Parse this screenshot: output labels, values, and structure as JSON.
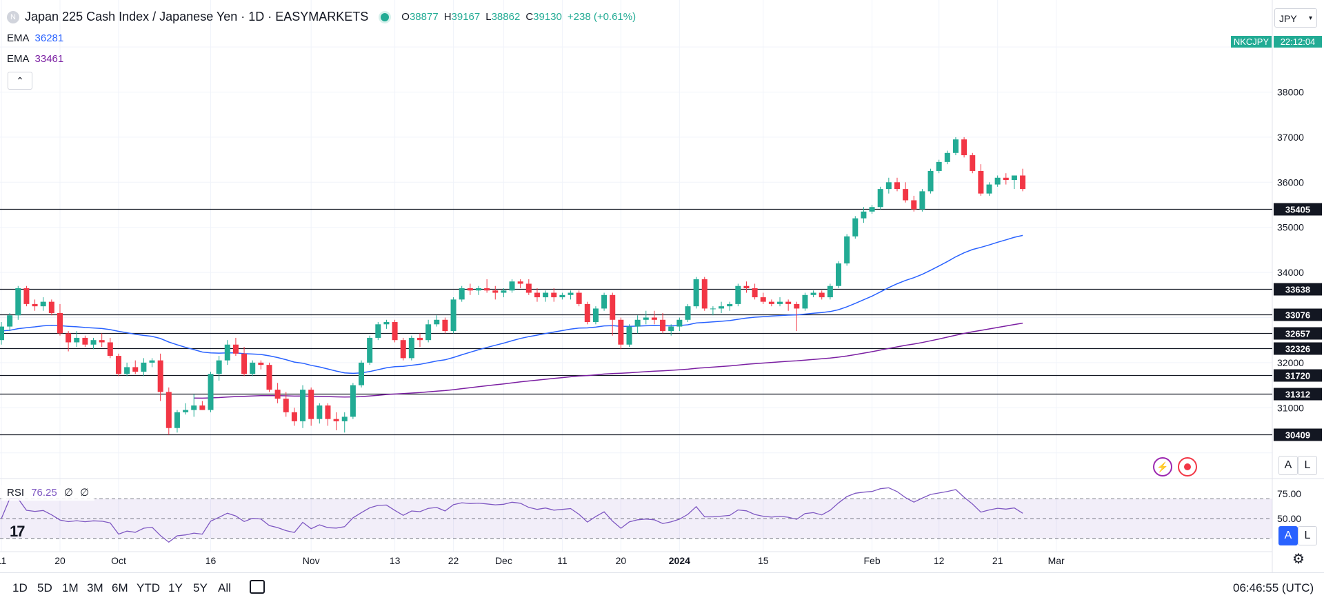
{
  "header": {
    "title": "Japan 225 Cash Index / Japanese Yen · 1D · EASYMARKETS",
    "ohlc": [
      {
        "label": "O",
        "value": "38877"
      },
      {
        "label": "H",
        "value": "39167"
      },
      {
        "label": "L",
        "value": "38862"
      },
      {
        "label": "C",
        "value": "39130"
      }
    ],
    "change": "+238 (+0.61%)"
  },
  "indicators": [
    {
      "name": "EMA",
      "value": "36281",
      "color": "#2962ff"
    },
    {
      "name": "EMA",
      "value": "33461",
      "color": "#7b1fa2"
    }
  ],
  "currency_button": "JPY",
  "symbol_tag": "NKCJPY",
  "countdown": "22:12:04",
  "rsi": {
    "label": "RSI",
    "value": "76.25",
    "extra1": "∅",
    "extra2": "∅"
  },
  "timeframes": [
    "1D",
    "5D",
    "1M",
    "3M",
    "6M",
    "YTD",
    "1Y",
    "5Y",
    "All"
  ],
  "clock": "06:46:55 (UTC)",
  "scale_buttons": {
    "a": "A",
    "l": "L"
  },
  "colors": {
    "up": "#22ab94",
    "down": "#f23645",
    "ema_fast": "#2962ff",
    "ema_slow": "#7b1fa2",
    "rsi": "#7e57c2",
    "price_tag": "#22ab94"
  },
  "chart_data": {
    "type": "candlestick",
    "title": "Japan 225 Cash Index / Japanese Yen · 1D · EASYMARKETS",
    "ylim": [
      29600,
      39600
    ],
    "y_ticks": [
      31000,
      32000,
      34000,
      35000,
      36000,
      37000,
      38000
    ],
    "x_labels": [
      {
        "label": "11",
        "index": 0
      },
      {
        "label": "20",
        "index": 7
      },
      {
        "label": "Oct",
        "index": 14
      },
      {
        "label": "16",
        "index": 25
      },
      {
        "label": "Nov",
        "index": 37
      },
      {
        "label": "13",
        "index": 47
      },
      {
        "label": "22",
        "index": 54
      },
      {
        "label": "Dec",
        "index": 60
      },
      {
        "label": "11",
        "index": 67
      },
      {
        "label": "20",
        "index": 74
      },
      {
        "label": "2024",
        "index": 81
      },
      {
        "label": "15",
        "index": 91
      },
      {
        "label": "Feb",
        "index": 104
      },
      {
        "label": "12",
        "index": 112
      },
      {
        "label": "21",
        "index": 119
      },
      {
        "label": "Mar",
        "index": 126
      }
    ],
    "levels": [
      35405,
      33638,
      33076,
      32657,
      32326,
      31720,
      31312,
      30409
    ],
    "candles": [
      [
        32500,
        32900,
        32400,
        32800
      ],
      [
        32800,
        33100,
        32700,
        33050
      ],
      [
        33050,
        33700,
        32950,
        33650
      ],
      [
        33650,
        33700,
        33250,
        33300
      ],
      [
        33300,
        33400,
        33150,
        33250
      ],
      [
        33250,
        33450,
        33150,
        33350
      ],
      [
        33350,
        33400,
        33050,
        33100
      ],
      [
        33100,
        33300,
        32600,
        32650
      ],
      [
        32650,
        32700,
        32250,
        32450
      ],
      [
        32450,
        32700,
        32350,
        32550
      ],
      [
        32550,
        32600,
        32350,
        32400
      ],
      [
        32400,
        32550,
        32300,
        32500
      ],
      [
        32500,
        32650,
        32350,
        32450
      ],
      [
        32450,
        32550,
        32100,
        32150
      ],
      [
        32150,
        32200,
        31700,
        31750
      ],
      [
        31750,
        32000,
        31700,
        31900
      ],
      [
        31900,
        32050,
        31750,
        31800
      ],
      [
        31800,
        32100,
        31700,
        32000
      ],
      [
        32000,
        32100,
        31900,
        32050
      ],
      [
        32050,
        32200,
        31150,
        31350
      ],
      [
        31350,
        31450,
        30400,
        30550
      ],
      [
        30550,
        30950,
        30450,
        30900
      ],
      [
        30900,
        31100,
        30850,
        30950
      ],
      [
        30950,
        31300,
        30800,
        31050
      ],
      [
        31050,
        31150,
        30950,
        30950
      ],
      [
        30950,
        31800,
        30900,
        31750
      ],
      [
        31750,
        32150,
        31600,
        32050
      ],
      [
        32050,
        32500,
        31950,
        32400
      ],
      [
        32400,
        32550,
        32150,
        32200
      ],
      [
        32200,
        32350,
        31700,
        31750
      ],
      [
        31750,
        32050,
        31700,
        32000
      ],
      [
        32000,
        32050,
        31850,
        31950
      ],
      [
        31950,
        32000,
        31350,
        31400
      ],
      [
        31400,
        31550,
        31100,
        31200
      ],
      [
        31200,
        31350,
        30800,
        30900
      ],
      [
        30900,
        31000,
        30600,
        30700
      ],
      [
        30700,
        31500,
        30550,
        31400
      ],
      [
        31400,
        31450,
        30600,
        30750
      ],
      [
        30750,
        31100,
        30650,
        31050
      ],
      [
        31050,
        31100,
        30600,
        30750
      ],
      [
        30750,
        30900,
        30500,
        30700
      ],
      [
        30700,
        30900,
        30450,
        30800
      ],
      [
        30800,
        31550,
        30750,
        31500
      ],
      [
        31500,
        32050,
        31450,
        32000
      ],
      [
        32000,
        32600,
        31950,
        32550
      ],
      [
        32550,
        32900,
        32500,
        32850
      ],
      [
        32850,
        32950,
        32750,
        32900
      ],
      [
        32900,
        32950,
        32450,
        32500
      ],
      [
        32500,
        32550,
        32050,
        32100
      ],
      [
        32100,
        32600,
        32050,
        32550
      ],
      [
        32550,
        32650,
        32350,
        32500
      ],
      [
        32500,
        32950,
        32450,
        32850
      ],
      [
        32850,
        33050,
        32800,
        32950
      ],
      [
        32950,
        33000,
        32650,
        32700
      ],
      [
        32700,
        33450,
        32650,
        33400
      ],
      [
        33400,
        33700,
        33350,
        33650
      ],
      [
        33650,
        33750,
        33500,
        33600
      ],
      [
        33600,
        33700,
        33500,
        33650
      ],
      [
        33650,
        33850,
        33550,
        33600
      ],
      [
        33600,
        33700,
        33400,
        33550
      ],
      [
        33550,
        33650,
        33450,
        33600
      ],
      [
        33600,
        33850,
        33550,
        33800
      ],
      [
        33800,
        33850,
        33650,
        33750
      ],
      [
        33750,
        33850,
        33500,
        33550
      ],
      [
        33550,
        33650,
        33350,
        33450
      ],
      [
        33450,
        33600,
        33350,
        33550
      ],
      [
        33550,
        33650,
        33350,
        33450
      ],
      [
        33450,
        33550,
        33400,
        33500
      ],
      [
        33500,
        33600,
        33400,
        33550
      ],
      [
        33550,
        33600,
        33250,
        33300
      ],
      [
        33300,
        33350,
        32850,
        32900
      ],
      [
        32900,
        33250,
        32850,
        33200
      ],
      [
        33200,
        33550,
        33150,
        33500
      ],
      [
        33500,
        33550,
        32600,
        32950
      ],
      [
        32950,
        33000,
        32300,
        32400
      ],
      [
        32400,
        32850,
        32350,
        32800
      ],
      [
        32800,
        33050,
        32650,
        32950
      ],
      [
        32950,
        33150,
        32850,
        33000
      ],
      [
        33000,
        33150,
        32850,
        32950
      ],
      [
        32950,
        33100,
        32650,
        32700
      ],
      [
        32700,
        32850,
        32600,
        32800
      ],
      [
        32800,
        33000,
        32700,
        32950
      ],
      [
        32950,
        33300,
        32900,
        33250
      ],
      [
        33250,
        33900,
        33200,
        33850
      ],
      [
        33850,
        33900,
        33150,
        33200
      ],
      [
        33200,
        33250,
        33050,
        33200
      ],
      [
        33200,
        33350,
        33100,
        33250
      ],
      [
        33250,
        33350,
        33150,
        33300
      ],
      [
        33300,
        33750,
        33250,
        33700
      ],
      [
        33700,
        33800,
        33550,
        33650
      ],
      [
        33650,
        33750,
        33400,
        33450
      ],
      [
        33450,
        33550,
        33300,
        33350
      ],
      [
        33350,
        33400,
        33250,
        33300
      ],
      [
        33300,
        33450,
        33250,
        33350
      ],
      [
        33350,
        33400,
        33150,
        33300
      ],
      [
        33300,
        33350,
        32700,
        33200
      ],
      [
        33200,
        33550,
        33150,
        33500
      ],
      [
        33500,
        33600,
        33450,
        33550
      ],
      [
        33550,
        33600,
        33400,
        33450
      ],
      [
        33450,
        33750,
        33400,
        33700
      ],
      [
        33700,
        34250,
        33650,
        34200
      ],
      [
        34200,
        34850,
        34150,
        34800
      ],
      [
        34800,
        35250,
        34750,
        35200
      ],
      [
        35200,
        35450,
        35100,
        35350
      ],
      [
        35350,
        35500,
        35300,
        35450
      ],
      [
        35450,
        35900,
        35400,
        35850
      ],
      [
        35850,
        36100,
        35750,
        36000
      ],
      [
        36000,
        36100,
        35800,
        35850
      ],
      [
        35850,
        36000,
        35550,
        35600
      ],
      [
        35600,
        35700,
        35350,
        35400
      ],
      [
        35400,
        35850,
        35350,
        35800
      ],
      [
        35800,
        36300,
        35750,
        36250
      ],
      [
        36250,
        36500,
        36200,
        36450
      ],
      [
        36450,
        36700,
        36400,
        36650
      ],
      [
        36650,
        37000,
        36600,
        36950
      ],
      [
        36950,
        37000,
        36550,
        36600
      ],
      [
        36600,
        36650,
        36200,
        36250
      ],
      [
        36250,
        36400,
        35700,
        35750
      ],
      [
        35750,
        36000,
        35700,
        35950
      ],
      [
        35950,
        36150,
        35900,
        36100
      ],
      [
        36100,
        36200,
        35950,
        36050
      ],
      [
        36050,
        36150,
        35850,
        36150
      ],
      [
        36150,
        36300,
        35800,
        35850
      ]
    ],
    "ema_fast": {
      "name": "EMA",
      "value": 36281
    },
    "ema_slow": {
      "name": "EMA",
      "value": 33461
    }
  }
}
